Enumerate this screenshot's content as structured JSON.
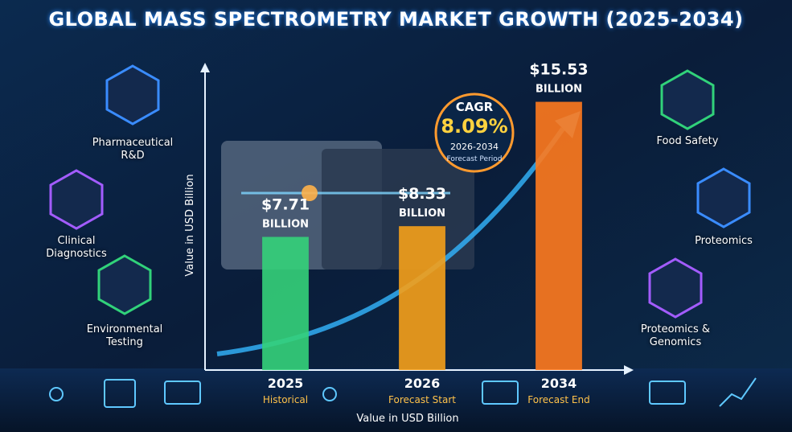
{
  "chart_data": {
    "type": "bar",
    "title": "GLOBAL MASS SPECTROMETRY MARKET GROWTH (2025-2034)",
    "categories": [
      "2025",
      "2026",
      "2034"
    ],
    "category_notes": [
      "Historical",
      "Forecast Start",
      "Forecast End"
    ],
    "values": [
      7.71,
      8.33,
      15.53
    ],
    "value_labels": [
      "$7.71",
      "$8.33",
      "$15.53"
    ],
    "value_unit": "BILLION",
    "colors": [
      "#34d27a",
      "#f5a019",
      "#ff7a1e"
    ],
    "ylim": [
      0,
      17
    ],
    "y_label": "Value in USD Billion",
    "x_label": "Value in USD Billion",
    "annotation": {
      "title": "CAGR",
      "value": "8.09%",
      "period": "2026-2034",
      "note": "Forecast Period"
    },
    "applications_left": [
      "Pharmaceutical R&D",
      "Clinical Diagnostics",
      "Environmental Testing"
    ],
    "applications_right": [
      "Food Safety",
      "Proteomics",
      "Proteomics & Genomics"
    ]
  }
}
